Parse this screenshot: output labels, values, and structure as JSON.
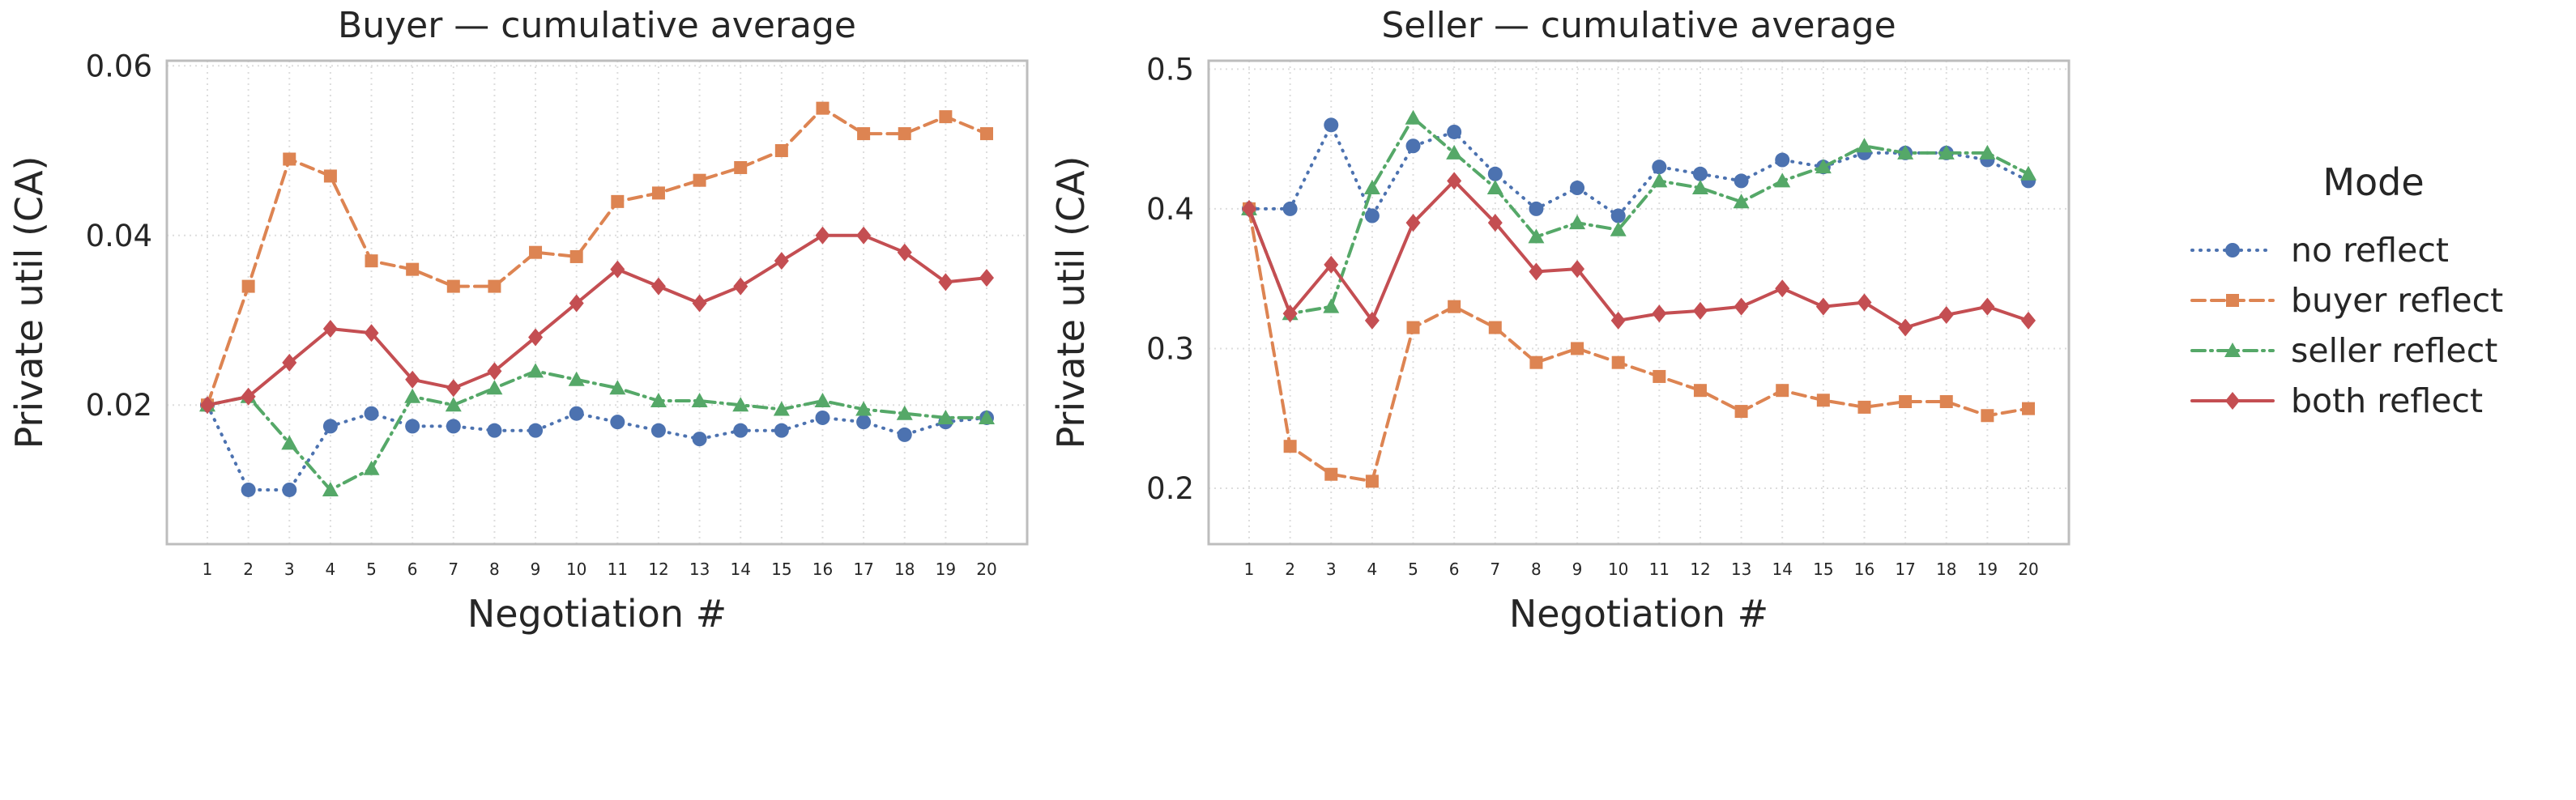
{
  "figure": {
    "background": "#ffffff",
    "text_color": "#262626",
    "grid_color": "#dddddd",
    "frame_color": "#bdbdbd",
    "plot_background": "#ffffff"
  },
  "legend": {
    "title": "Mode",
    "entries": [
      {
        "label": "no reflect",
        "color": "#4C72B0",
        "marker": "circle",
        "dash": "dotted"
      },
      {
        "label": "buyer reflect",
        "color": "#DD8452",
        "marker": "square",
        "dash": "dashed"
      },
      {
        "label": "seller reflect",
        "color": "#55A868",
        "marker": "triangle",
        "dash": "dashdot"
      },
      {
        "label": "both reflect",
        "color": "#C44E52",
        "marker": "diamond",
        "dash": "solid"
      }
    ]
  },
  "chart_data": [
    {
      "type": "line",
      "title": "Buyer — cumulative average",
      "xlabel": "Negotiation #",
      "ylabel": "Private util (CA)",
      "x": [
        1,
        2,
        3,
        4,
        5,
        6,
        7,
        8,
        9,
        10,
        11,
        12,
        13,
        14,
        15,
        16,
        17,
        18,
        19,
        20
      ],
      "ylim": [
        0.0036,
        0.0606
      ],
      "ytick_values": [
        0.02,
        0.04,
        0.06
      ],
      "ytick_labels": [
        "0.02",
        "0.04",
        "0.06"
      ],
      "grid": true,
      "series": [
        {
          "name": "no reflect",
          "values": [
            0.02,
            0.01,
            0.01,
            0.0175,
            0.019,
            0.0175,
            0.0175,
            0.017,
            0.017,
            0.019,
            0.018,
            0.017,
            0.016,
            0.017,
            0.017,
            0.0185,
            0.018,
            0.0165,
            0.018,
            0.0185
          ]
        },
        {
          "name": "buyer reflect",
          "values": [
            0.02,
            0.034,
            0.049,
            0.047,
            0.037,
            0.036,
            0.034,
            0.034,
            0.038,
            0.0375,
            0.044,
            0.045,
            0.0465,
            0.048,
            0.05,
            0.055,
            0.052,
            0.052,
            0.054,
            0.052
          ]
        },
        {
          "name": "seller reflect",
          "values": [
            0.02,
            0.021,
            0.0155,
            0.01,
            0.0125,
            0.021,
            0.02,
            0.022,
            0.024,
            0.023,
            0.022,
            0.0205,
            0.0205,
            0.02,
            0.0195,
            0.0205,
            0.0195,
            0.019,
            0.0185,
            0.0185
          ]
        },
        {
          "name": "both reflect",
          "values": [
            0.02,
            0.021,
            0.025,
            0.029,
            0.0285,
            0.023,
            0.022,
            0.024,
            0.028,
            0.032,
            0.036,
            0.034,
            0.032,
            0.034,
            0.037,
            0.04,
            0.04,
            0.038,
            0.0345,
            0.035
          ]
        }
      ]
    },
    {
      "type": "line",
      "title": "Seller — cumulative average",
      "xlabel": "Negotiation #",
      "ylabel": "Private util (CA)",
      "x": [
        1,
        2,
        3,
        4,
        5,
        6,
        7,
        8,
        9,
        10,
        11,
        12,
        13,
        14,
        15,
        16,
        17,
        18,
        19,
        20
      ],
      "ylim": [
        0.16,
        0.506
      ],
      "ytick_values": [
        0.2,
        0.3,
        0.4,
        0.5
      ],
      "ytick_labels": [
        "0.2",
        "0.3",
        "0.4",
        "0.5"
      ],
      "grid": true,
      "series": [
        {
          "name": "no reflect",
          "values": [
            0.4,
            0.4,
            0.46,
            0.395,
            0.445,
            0.455,
            0.425,
            0.4,
            0.415,
            0.395,
            0.43,
            0.425,
            0.42,
            0.435,
            0.43,
            0.44,
            0.44,
            0.44,
            0.435,
            0.42
          ]
        },
        {
          "name": "buyer reflect",
          "values": [
            0.4,
            0.23,
            0.21,
            0.205,
            0.315,
            0.33,
            0.315,
            0.29,
            0.3,
            0.29,
            0.28,
            0.27,
            0.255,
            0.27,
            0.263,
            0.258,
            0.262,
            0.262,
            0.252,
            0.257
          ]
        },
        {
          "name": "seller reflect",
          "values": [
            0.4,
            0.325,
            0.33,
            0.415,
            0.465,
            0.44,
            0.415,
            0.38,
            0.39,
            0.385,
            0.42,
            0.415,
            0.405,
            0.42,
            0.43,
            0.445,
            0.44,
            0.44,
            0.44,
            0.425
          ]
        },
        {
          "name": "both reflect",
          "values": [
            0.4,
            0.325,
            0.36,
            0.32,
            0.39,
            0.42,
            0.39,
            0.355,
            0.357,
            0.32,
            0.325,
            0.327,
            0.33,
            0.343,
            0.33,
            0.333,
            0.315,
            0.324,
            0.33,
            0.32
          ]
        }
      ]
    }
  ]
}
